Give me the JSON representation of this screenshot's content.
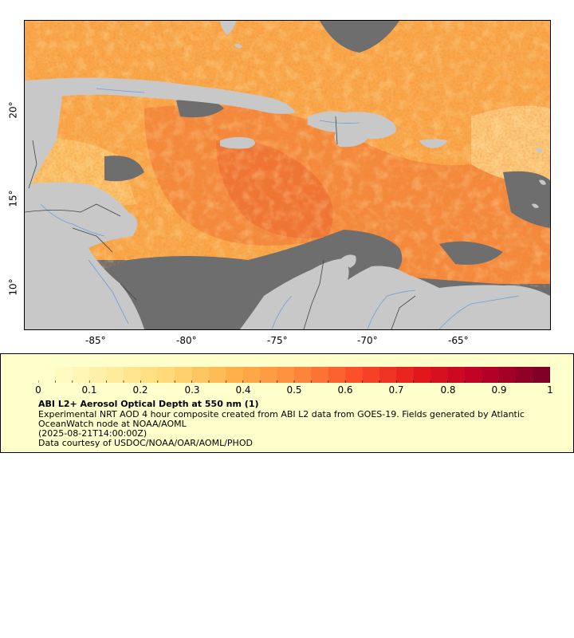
{
  "map": {
    "x_ticks": [
      "-85°",
      "-80°",
      "-75°",
      "-70°",
      "-65°"
    ],
    "y_ticks": [
      "20°",
      "15°",
      "10°"
    ],
    "extent": {
      "lon_min": -89,
      "lon_max": -60,
      "lat_min": 8,
      "lat_max": 25
    }
  },
  "colors": {
    "land": "#c8c8c8",
    "no_data": "#6e6e6e",
    "rivers": "#6b9fd4",
    "borders": "#444444",
    "legend_bg": "#ffffcc"
  },
  "legend": {
    "tick_labels": [
      "0",
      "0.1",
      "0.2",
      "0.3",
      "0.4",
      "0.5",
      "0.6",
      "0.7",
      "0.8",
      "0.9",
      "1"
    ],
    "colormap": "YlOrRd",
    "title": "ABI L2+ Aerosol Optical Depth at 550 nm (1)",
    "description_line1": "Experimental NRT AOD 4 hour composite created from ABI L2 data from GOES-19. Fields generated by Atlantic",
    "description_line2": "OceanWatch node at NOAA/AOML",
    "time": "(2025-08-21T14:00:00Z)",
    "credit": "Data courtesy of USDOC/NOAA/OAR/AOML/PHOD"
  }
}
